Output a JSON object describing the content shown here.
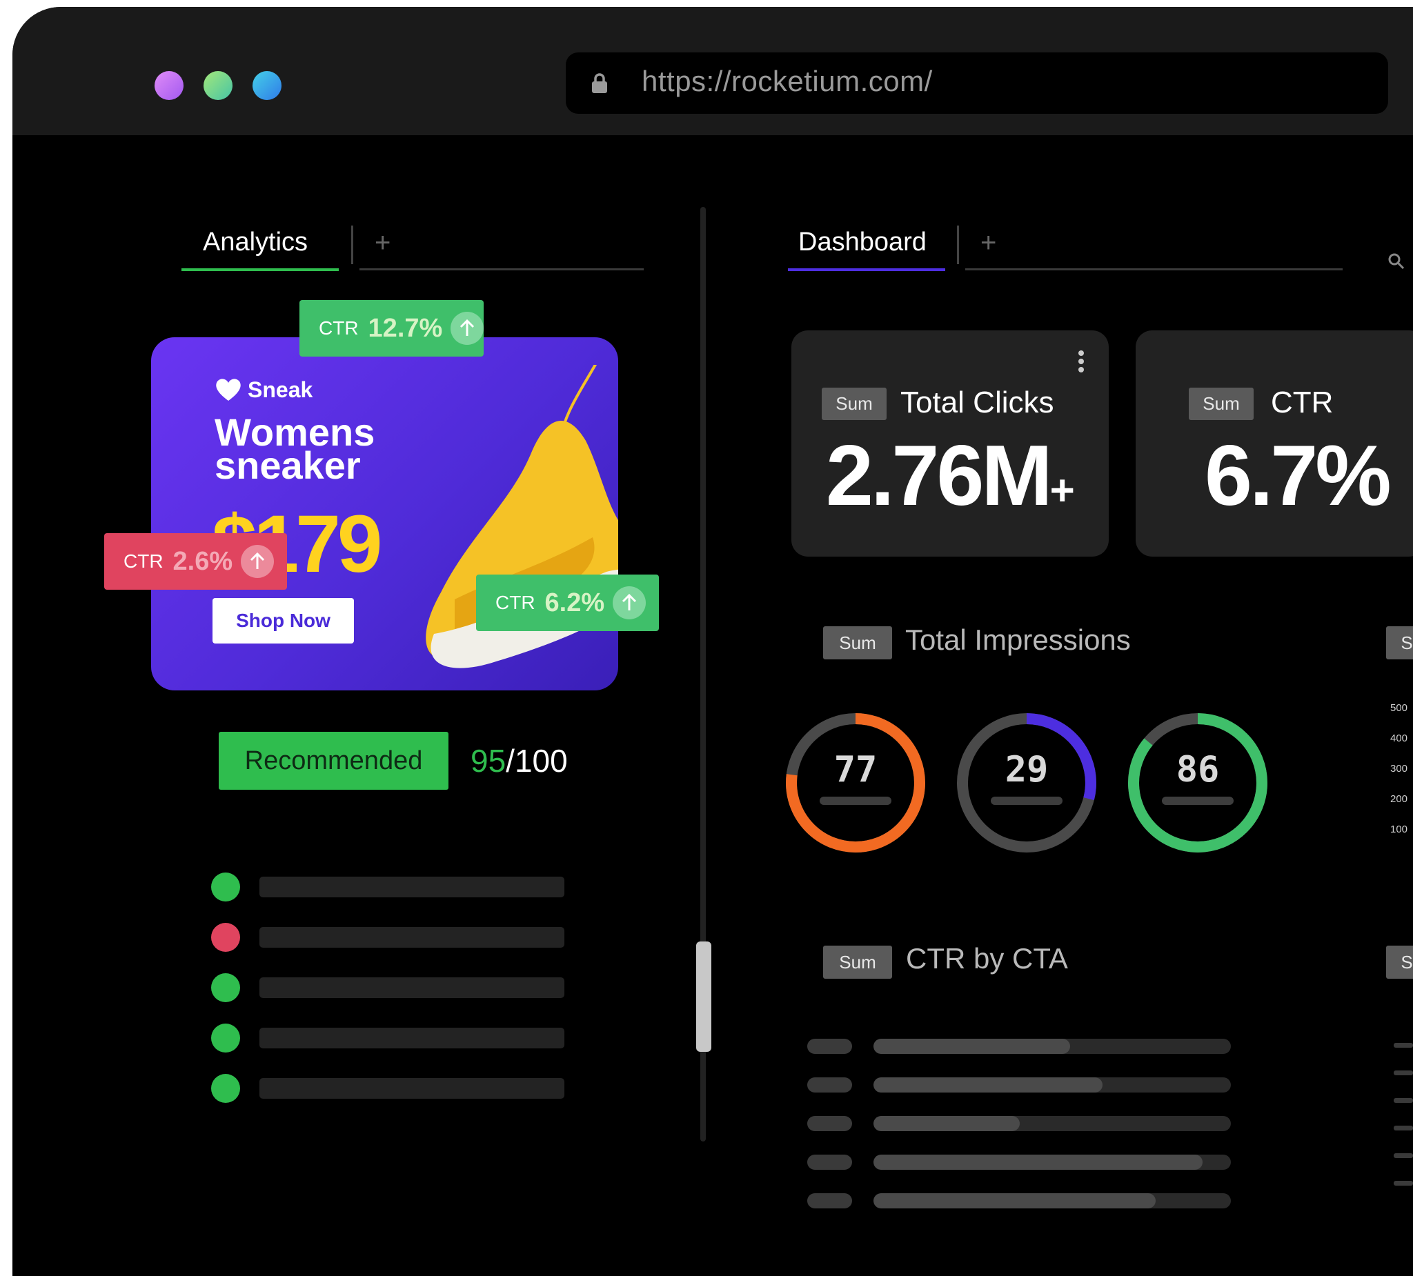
{
  "browser": {
    "url": "https://rocketium.com/",
    "dot_colors": [
      "#c76cf5",
      "#8ee08a",
      "#38a7f0"
    ]
  },
  "left_panel": {
    "tab_label": "Analytics",
    "add_tab_symbol": "+",
    "ad": {
      "brand": "Sneak",
      "headline_line1": "Womens",
      "headline_line2": "sneaker",
      "price": "$179",
      "cta": "Shop Now"
    },
    "ctr_badges": [
      {
        "label": "CTR",
        "value": "12.7%",
        "color": "#3fbf6a"
      },
      {
        "label": "CTR",
        "value": "2.6%",
        "color": "#e0445f"
      },
      {
        "label": "CTR",
        "value": "6.2%",
        "color": "#3fbf6a"
      }
    ],
    "recommended_label": "Recommended",
    "score": "95",
    "score_total": "/100",
    "list_status_colors": [
      "#2fbd4e",
      "#e0445f",
      "#2fbd4e",
      "#2fbd4e",
      "#2fbd4e"
    ]
  },
  "right_panel": {
    "tab_label": "Dashboard",
    "add_tab_symbol": "+",
    "kpis": [
      {
        "tag": "Sum",
        "title": "Total Clicks",
        "value": "2.76M",
        "suffix": "+"
      },
      {
        "tag": "Sum",
        "title": "CTR",
        "value": "6.7%",
        "suffix": ""
      }
    ],
    "impressions": {
      "tag": "Sum",
      "title": "Total Impressions",
      "rings": [
        {
          "value": "77",
          "fraction": 0.77,
          "color": "#f26a22"
        },
        {
          "value": "29",
          "fraction": 0.29,
          "color": "#4d2ee0"
        },
        {
          "value": "86",
          "fraction": 0.86,
          "color": "#3fbf6a"
        }
      ]
    },
    "side_chart": {
      "tag": "S",
      "y_ticks": [
        "500",
        "400",
        "300",
        "200",
        "100"
      ]
    },
    "ctr_by_cta": {
      "tag": "Sum",
      "title": "CTR by CTA",
      "bar_fractions": [
        0.55,
        0.64,
        0.41,
        0.92,
        0.79
      ]
    },
    "side_tag2": "S"
  }
}
